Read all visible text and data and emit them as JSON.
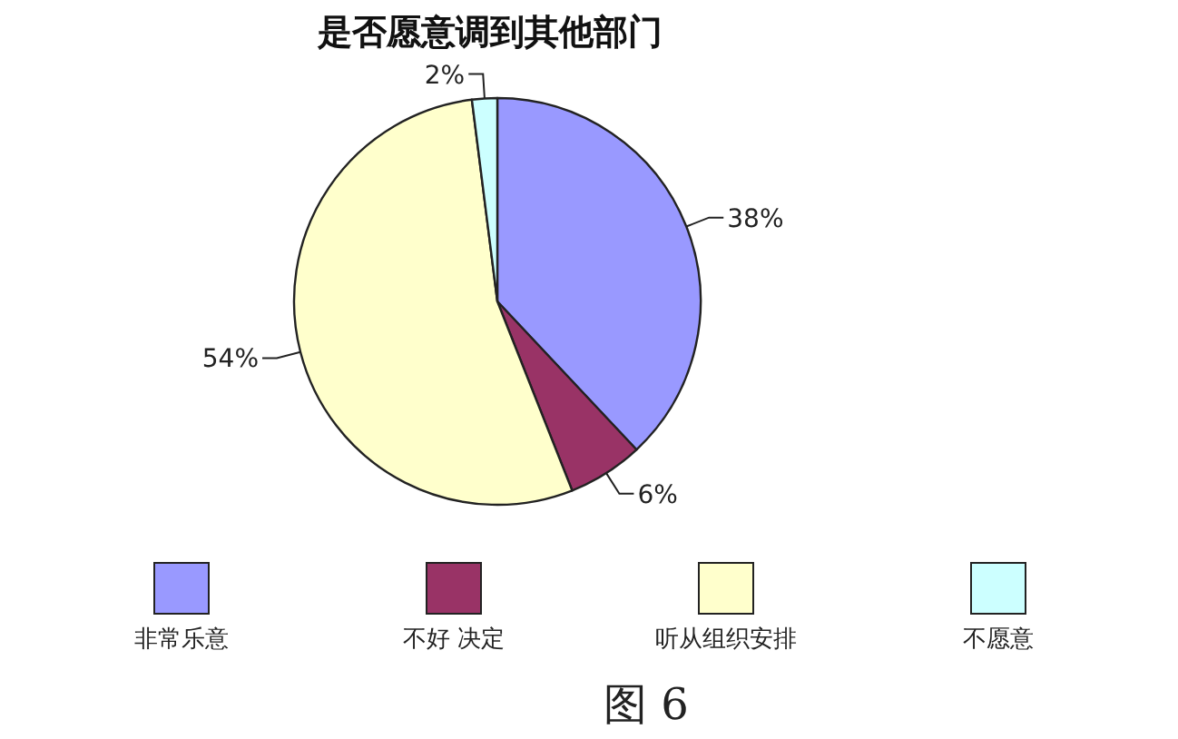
{
  "chart_data": {
    "type": "pie",
    "title": "是否愿意调到其他部门",
    "categories": [
      "非常乐意",
      "不好 决定",
      "听从组织安排",
      "不愿意"
    ],
    "values": [
      38,
      6,
      54,
      2
    ],
    "value_labels": [
      "38%",
      "6%",
      "54%",
      "2%"
    ],
    "colors": [
      "#9999ff",
      "#993366",
      "#ffffcc",
      "#ccffff"
    ],
    "legend": "bottom",
    "annotations": [
      "图 6"
    ]
  }
}
